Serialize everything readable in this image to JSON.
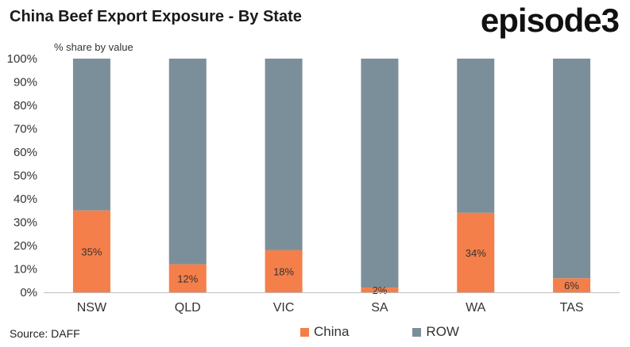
{
  "header": {
    "title": "China Beef Export Exposure - By State",
    "logo_text": "episode3",
    "unit_label": "% share by value"
  },
  "footer": {
    "source": "Source: DAFF"
  },
  "colors": {
    "china": "#f47f4a",
    "row": "#7b8f9a",
    "axis": "#bfbfbf"
  },
  "chart_data": {
    "type": "bar",
    "stacked": true,
    "categories": [
      "NSW",
      "QLD",
      "VIC",
      "SA",
      "WA",
      "TAS"
    ],
    "series": [
      {
        "name": "China",
        "values": [
          35,
          12,
          18,
          2,
          34,
          6
        ],
        "labels": [
          "35%",
          "12%",
          "18%",
          "2%",
          "34%",
          "6%"
        ]
      },
      {
        "name": "ROW",
        "values": [
          65,
          88,
          82,
          98,
          66,
          94
        ]
      }
    ],
    "title": "China Beef Export Exposure - By State",
    "ylabel": "% share by value",
    "ylim": [
      0,
      100
    ],
    "yticks": [
      "0%",
      "10%",
      "20%",
      "30%",
      "40%",
      "50%",
      "60%",
      "70%",
      "80%",
      "90%",
      "100%"
    ],
    "legend_position": "bottom",
    "grid": false
  }
}
